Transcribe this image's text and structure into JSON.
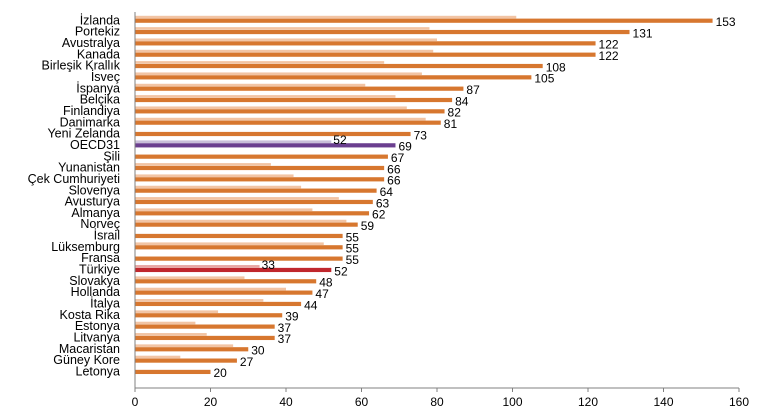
{
  "chart_data": {
    "type": "bar",
    "orientation": "horizontal",
    "title": "",
    "xlabel": "",
    "ylabel": "",
    "xlim": [
      0,
      160
    ],
    "x_ticks": [
      0,
      20,
      40,
      60,
      80,
      100,
      120,
      140,
      160
    ],
    "grid": false,
    "legend": "none",
    "colors": {
      "current": "#d7772f",
      "previous": "#f2c4a4",
      "oecd_current": "#6b3f8f",
      "oecd_previous": "#c9bfd9",
      "turkey_current": "#c0272d",
      "turkey_previous": "#e8a6a2"
    },
    "categories": [
      "İzlanda",
      "Portekiz",
      "Avustralya",
      "Kanada",
      "Birleşik Krallık",
      "İsveç",
      "İspanya",
      "Belçika",
      "Finlandiya",
      "Danimarka",
      "Yeni Zelanda",
      "OECD31",
      "Şili",
      "Yunanistan",
      "Çek Cumhuriyeti",
      "Slovenya",
      "Avusturya",
      "Almanya",
      "Norveç",
      "İsrail",
      "Lüksemburg",
      "Fransa",
      "Türkiye",
      "Slovakya",
      "Hollanda",
      "İtalya",
      "Kosta Rika",
      "Estonya",
      "Litvanya",
      "Macaristan",
      "Güney Kore",
      "Letonya"
    ],
    "highlight": {
      "OECD31": "oecd",
      "Türkiye": "turkey"
    },
    "series": [
      {
        "values": [
          153,
          131,
          122,
          122,
          108,
          105,
          87,
          84,
          82,
          81,
          73,
          69,
          67,
          66,
          66,
          64,
          63,
          62,
          59,
          55,
          55,
          55,
          52,
          48,
          47,
          44,
          39,
          37,
          37,
          30,
          27,
          20
        ],
        "labels": [
          "153",
          "131",
          "122",
          "122",
          "108",
          "105",
          "87",
          "84",
          "82",
          "81",
          "73",
          "69",
          "67",
          "66",
          "66",
          "64",
          "63",
          "62",
          "59",
          "55",
          "55",
          "55",
          "52",
          "48",
          "47",
          "44",
          "39",
          "37",
          "37",
          "30",
          "27",
          "20"
        ]
      },
      {
        "values": [
          101,
          78,
          80,
          79,
          66,
          76,
          61,
          69,
          72,
          77,
          null,
          52,
          null,
          36,
          42,
          44,
          54,
          47,
          56,
          null,
          50,
          null,
          33,
          29,
          40,
          34,
          22,
          16,
          19,
          26,
          12,
          null
        ],
        "labels": [
          "",
          "",
          "",
          "",
          "",
          "",
          "",
          "",
          "",
          "",
          "",
          "52",
          "",
          "",
          "",
          "",
          "",
          "",
          "",
          "",
          "",
          "",
          "33",
          "",
          "",
          "",
          "",
          "",
          "",
          "",
          "",
          ""
        ]
      }
    ]
  }
}
